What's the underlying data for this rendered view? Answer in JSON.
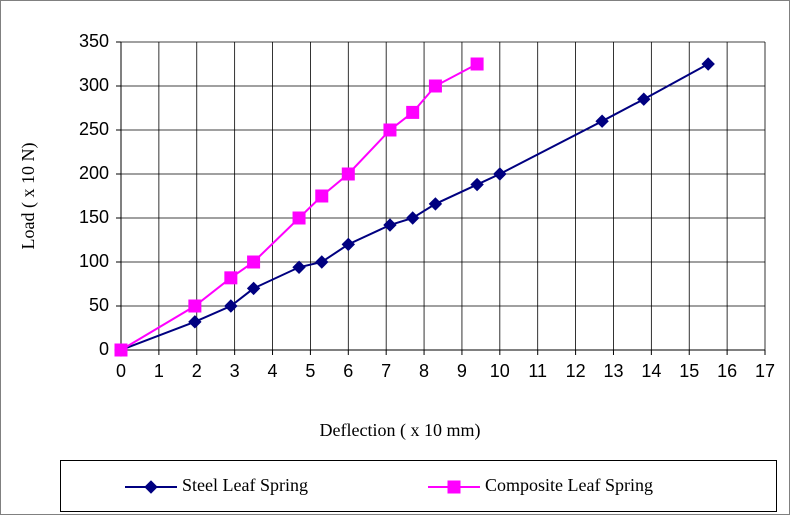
{
  "chart_data": {
    "type": "line",
    "x_label": "Deflection ( x 10 mm)",
    "y_label": "Load ( x 10 N)",
    "xlim": [
      0,
      17
    ],
    "xticks": [
      0,
      1,
      2,
      3,
      4,
      5,
      6,
      7,
      8,
      9,
      10,
      11,
      12,
      13,
      14,
      15,
      16,
      17
    ],
    "ylim": [
      0,
      350
    ],
    "yticks": [
      0,
      50,
      100,
      150,
      200,
      250,
      300,
      350
    ],
    "grid": true,
    "legend": "bottom",
    "series": [
      {
        "name": "Steel Leaf Spring",
        "color": "#000080",
        "marker": "diamond",
        "x": [
          0,
          1.95,
          2.9,
          3.5,
          4.7,
          5.3,
          6,
          7.1,
          7.7,
          8.3,
          9.4,
          10,
          12.7,
          13.8,
          15.5
        ],
        "values": [
          0,
          32,
          50,
          70,
          94,
          100,
          120,
          142,
          150,
          166,
          188,
          200,
          260,
          285,
          325
        ]
      },
      {
        "name": "Composite Leaf Spring",
        "color": "#ff00ff",
        "marker": "square",
        "x": [
          0,
          1.95,
          2.9,
          3.5,
          4.7,
          5.3,
          6,
          7.1,
          7.7,
          8.3,
          9.4
        ],
        "values": [
          0,
          50,
          82,
          100,
          150,
          175,
          200,
          250,
          270,
          300,
          325
        ]
      }
    ]
  }
}
